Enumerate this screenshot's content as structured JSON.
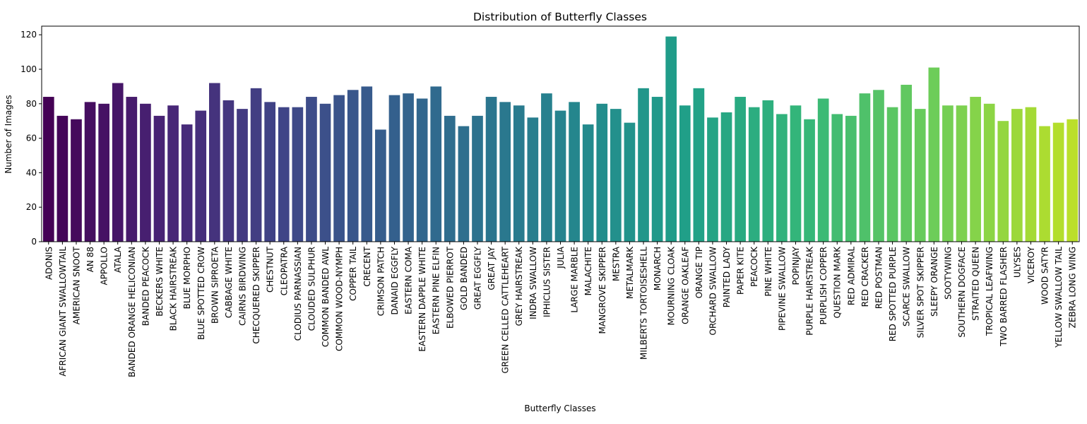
{
  "chart_data": {
    "type": "bar",
    "title": "Distribution of Butterfly Classes",
    "xlabel": "Butterfly Classes",
    "ylabel": "Number of Images",
    "ylim": [
      0,
      125
    ],
    "yticks": [
      0,
      20,
      40,
      60,
      80,
      100,
      120
    ],
    "grid": false,
    "legend": "none",
    "colormap": "viridis",
    "categories": [
      "ADONIS",
      "AFRICAN GIANT SWALLOWTAIL",
      "AMERICAN SNOOT",
      "AN 88",
      "APPOLLO",
      "ATALA",
      "BANDED ORANGE HELICONIAN",
      "BANDED PEACOCK",
      "BECKERS WHITE",
      "BLACK HAIRSTREAK",
      "BLUE MORPHO",
      "BLUE SPOTTED CROW",
      "BROWN SIPROETA",
      "CABBAGE WHITE",
      "CAIRNS BIRDWING",
      "CHECQUERED SKIPPER",
      "CHESTNUT",
      "CLEOPATRA",
      "CLODIUS PARNASSIAN",
      "CLOUDED SULPHUR",
      "COMMON BANDED AWL",
      "COMMON WOOD-NYMPH",
      "COPPER TAIL",
      "CRECENT",
      "CRIMSON PATCH",
      "DANAID EGGFLY",
      "EASTERN COMA",
      "EASTERN DAPPLE WHITE",
      "EASTERN PINE ELFIN",
      "ELBOWED PIERROT",
      "GOLD BANDED",
      "GREAT EGGFLY",
      "GREAT JAY",
      "GREEN CELLED CATTLEHEART",
      "GREY HAIRSTREAK",
      "INDRA SWALLOW",
      "IPHICLUS SISTER",
      "JULIA",
      "LARGE MARBLE",
      "MALACHITE",
      "MANGROVE SKIPPER",
      "MESTRA",
      "METALMARK",
      "MILBERTS TORTOISESHELL",
      "MONARCH",
      "MOURNING CLOAK",
      "ORANGE OAKLEAF",
      "ORANGE TIP",
      "ORCHARD SWALLOW",
      "PAINTED LADY",
      "PAPER KITE",
      "PEACOCK",
      "PINE WHITE",
      "PIPEVINE SWALLOW",
      "POPINJAY",
      "PURPLE HAIRSTREAK",
      "PURPLISH COPPER",
      "QUESTION MARK",
      "RED ADMIRAL",
      "RED CRACKER",
      "RED POSTMAN",
      "RED SPOTTED PURPLE",
      "SCARCE SWALLOW",
      "SILVER SPOT SKIPPER",
      "SLEEPY ORANGE",
      "SOOTYWING",
      "SOUTHERN DOGFACE",
      "STRAITED QUEEN",
      "TROPICAL LEAFWING",
      "TWO BARRED FLASHER",
      "ULYSES",
      "VICEROY",
      "WOOD SATYR",
      "YELLOW SWALLOW TAIL",
      "ZEBRA LONG WING"
    ],
    "values": [
      84,
      73,
      71,
      81,
      80,
      92,
      84,
      80,
      73,
      79,
      68,
      76,
      92,
      82,
      77,
      89,
      81,
      78,
      78,
      84,
      80,
      85,
      88,
      90,
      65,
      85,
      86,
      83,
      90,
      73,
      67,
      73,
      84,
      81,
      79,
      72,
      86,
      76,
      81,
      68,
      80,
      77,
      69,
      89,
      84,
      119,
      79,
      89,
      72,
      75,
      84,
      78,
      82,
      74,
      79,
      71,
      83,
      74,
      73,
      86,
      88,
      78,
      91,
      77,
      101,
      79,
      79,
      84,
      80,
      70,
      77,
      78,
      67,
      69,
      71
    ]
  }
}
